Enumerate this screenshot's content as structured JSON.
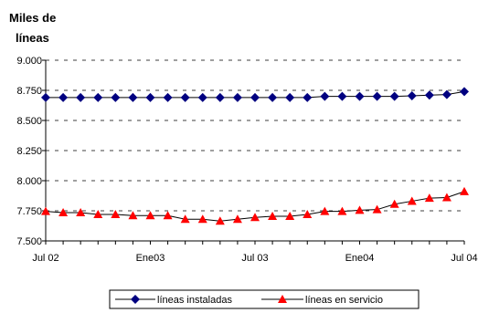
{
  "chart_data": {
    "type": "line",
    "ylabel_lines": [
      "Miles de",
      "líneas"
    ],
    "xlabel": "",
    "ylim": [
      7500,
      9000
    ],
    "yticks": [
      7500,
      7750,
      8000,
      8250,
      8500,
      8750,
      9000
    ],
    "ytick_labels": [
      "7.500",
      "7.750",
      "8.000",
      "8.250",
      "8.500",
      "8.750",
      "9.000"
    ],
    "x_points": 25,
    "xtick_labels": [
      {
        "index": 0,
        "label": "Jul 02"
      },
      {
        "index": 6,
        "label": "Ene03"
      },
      {
        "index": 12,
        "label": "Jul 03"
      },
      {
        "index": 18,
        "label": "Ene04"
      },
      {
        "index": 24,
        "label": "Jul 04"
      }
    ],
    "grid": "horizontal-dashed",
    "legend_position": "bottom",
    "series": [
      {
        "name": "líneas instaladas",
        "color": "#000080",
        "marker": "diamond",
        "values": [
          8690,
          8690,
          8690,
          8690,
          8690,
          8690,
          8690,
          8690,
          8690,
          8690,
          8690,
          8690,
          8690,
          8690,
          8690,
          8690,
          8700,
          8700,
          8700,
          8700,
          8700,
          8705,
          8710,
          8715,
          8740
        ]
      },
      {
        "name": "líneas en servicio",
        "color": "#ff0000",
        "marker": "triangle",
        "values": [
          7745,
          7735,
          7735,
          7720,
          7720,
          7710,
          7710,
          7710,
          7680,
          7680,
          7665,
          7680,
          7695,
          7705,
          7705,
          7720,
          7745,
          7745,
          7755,
          7760,
          7805,
          7830,
          7855,
          7860,
          7910
        ]
      }
    ]
  }
}
